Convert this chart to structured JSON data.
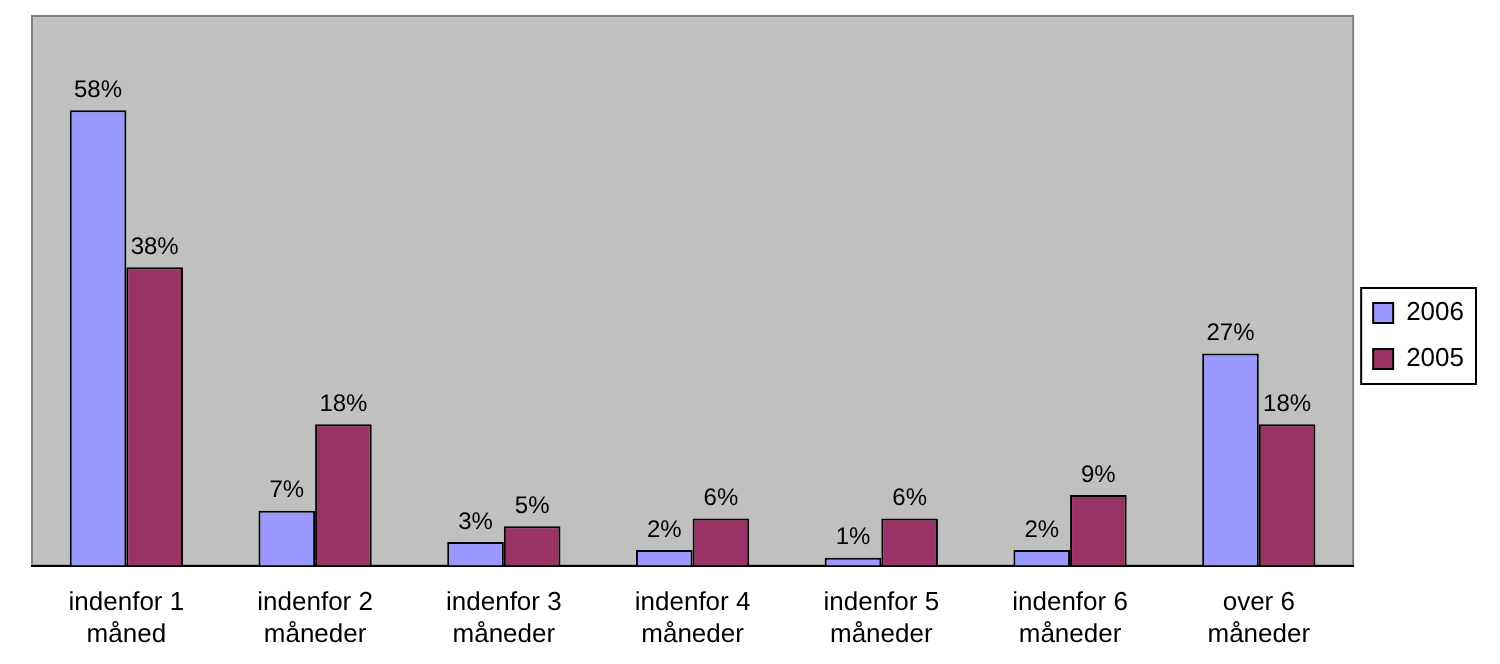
{
  "chart_data": {
    "type": "bar",
    "categories": [
      "indenfor 1 måned",
      "indenfor 2 måneder",
      "indenfor 3 måneder",
      "indenfor 4 måneder",
      "indenfor 5 måneder",
      "indenfor 6 måneder",
      "over 6 måneder"
    ],
    "series": [
      {
        "name": "2006",
        "color": "#9999ff",
        "values": [
          58,
          7,
          3,
          2,
          1,
          2,
          27
        ],
        "value_labels": [
          "58%",
          "7%",
          "3%",
          "2%",
          "1%",
          "2%",
          "27%"
        ]
      },
      {
        "name": "2005",
        "color": "#993366",
        "values": [
          38,
          18,
          5,
          6,
          6,
          9,
          18
        ],
        "value_labels": [
          "38%",
          "18%",
          "5%",
          "6%",
          "6%",
          "9%",
          "18%"
        ]
      }
    ],
    "legend": "right",
    "grid": false
  }
}
